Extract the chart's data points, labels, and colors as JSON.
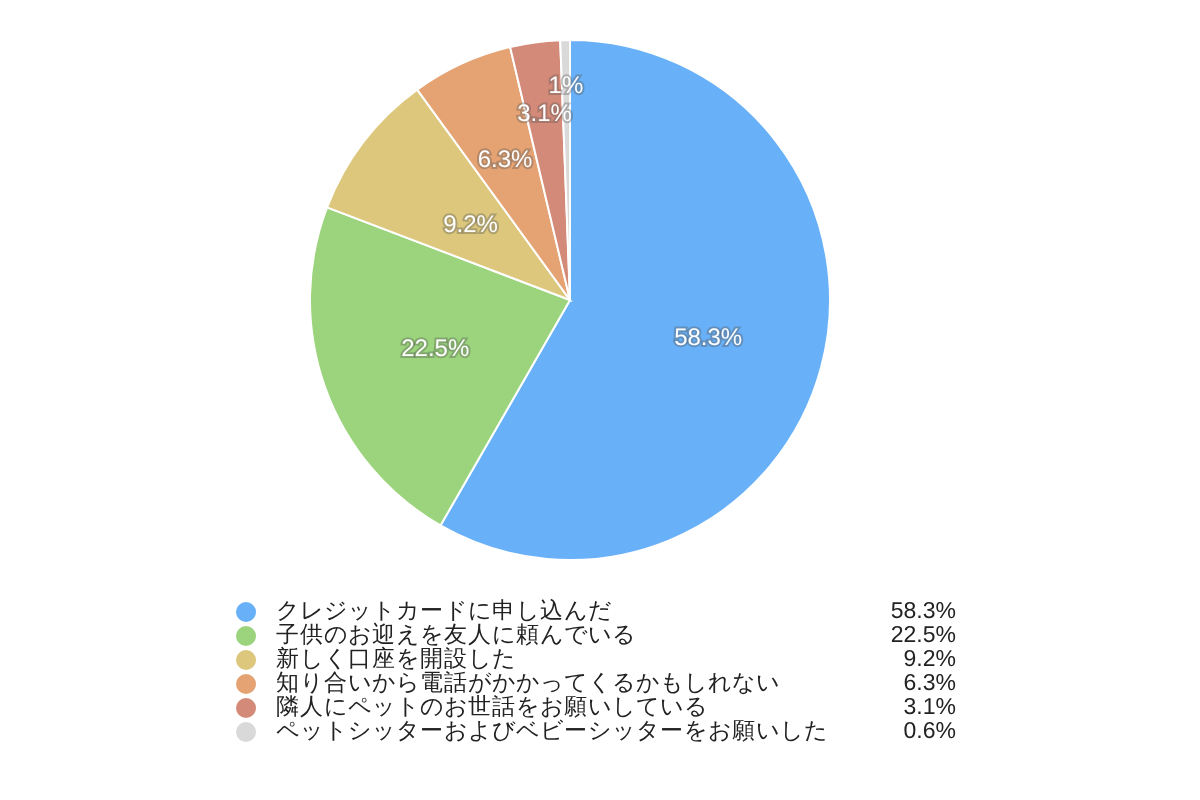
{
  "chart_data": {
    "type": "pie",
    "categories": [
      "クレジットカードに申し込んだ",
      "子供のお迎えを友人に頼んでいる",
      "新しく口座を開設した",
      "知り合いから電話がかかってくるかもしれない",
      "隣人にペットのお世話をお願いしている",
      "ペットシッターおよびベビーシッターをお願いした"
    ],
    "values": [
      58.3,
      22.5,
      9.2,
      6.3,
      3.1,
      0.6
    ],
    "value_labels": [
      "58.3%",
      "22.5%",
      "9.2%",
      "6.3%",
      "3.1%",
      "1%"
    ],
    "colors": [
      "#68b0f7",
      "#9bd47c",
      "#dcc77c",
      "#e5a373",
      "#d48a78",
      "#d9d9d9"
    ],
    "annotations": [
      "58.3%",
      "22.5%",
      "9.2%",
      "6.3%",
      "3.1%",
      "0.6%"
    ],
    "legend": "bottom"
  }
}
